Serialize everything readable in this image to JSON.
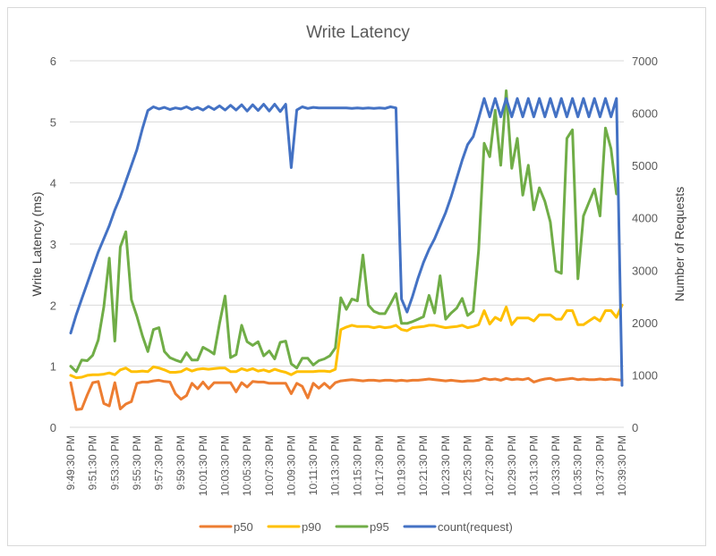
{
  "chart_data": {
    "type": "line",
    "title": "Write Latency",
    "ylabel": "Write Latency (ms)",
    "y2label": "Number of Requests",
    "ylim": [
      0,
      6
    ],
    "y2lim": [
      0,
      7000
    ],
    "yticks": [
      "0",
      "1",
      "2",
      "3",
      "4",
      "5",
      "6"
    ],
    "y2ticks": [
      "0",
      "1000",
      "2000",
      "3000",
      "4000",
      "5000",
      "6000",
      "7000"
    ],
    "grid": true,
    "legend": "bottom",
    "x_tick_labels": [
      "9:49:30 PM",
      "9:51:30 PM",
      "9:53:30 PM",
      "9:55:30 PM",
      "9:57:30 PM",
      "9:59:30 PM",
      "10:01:30 PM",
      "10:03:30 PM",
      "10:05:30 PM",
      "10:07:30 PM",
      "10:09:30 PM",
      "10:11:30 PM",
      "10:13:30 PM",
      "10:15:30 PM",
      "10:17:30 PM",
      "10:19:30 PM",
      "10:21:30 PM",
      "10:23:30 PM",
      "10:25:30 PM",
      "10:27:30 PM",
      "10:29:30 PM",
      "10:31:30 PM",
      "10:33:30 PM",
      "10:35:30 PM",
      "10:37:30 PM",
      "10:39:30 PM"
    ],
    "series": [
      {
        "name": "p50",
        "axis": "left",
        "color": "#ED7D31",
        "values": [
          0.73,
          0.29,
          0.3,
          0.53,
          0.73,
          0.75,
          0.39,
          0.35,
          0.73,
          0.3,
          0.38,
          0.42,
          0.72,
          0.74,
          0.74,
          0.76,
          0.77,
          0.75,
          0.74,
          0.55,
          0.46,
          0.52,
          0.72,
          0.63,
          0.74,
          0.63,
          0.73,
          0.73,
          0.73,
          0.73,
          0.58,
          0.73,
          0.66,
          0.75,
          0.74,
          0.74,
          0.72,
          0.72,
          0.72,
          0.72,
          0.55,
          0.72,
          0.67,
          0.48,
          0.72,
          0.64,
          0.72,
          0.64,
          0.73,
          0.76,
          0.77,
          0.78,
          0.77,
          0.76,
          0.77,
          0.77,
          0.76,
          0.77,
          0.77,
          0.76,
          0.77,
          0.76,
          0.77,
          0.77,
          0.78,
          0.79,
          0.78,
          0.77,
          0.76,
          0.77,
          0.76,
          0.75,
          0.76,
          0.76,
          0.77,
          0.8,
          0.78,
          0.79,
          0.77,
          0.8,
          0.78,
          0.79,
          0.78,
          0.8,
          0.74,
          0.77,
          0.79,
          0.8,
          0.77,
          0.78,
          0.79,
          0.8,
          0.78,
          0.79,
          0.78,
          0.78,
          0.79,
          0.78,
          0.79,
          0.78,
          0.77
        ]
      },
      {
        "name": "p90",
        "axis": "left",
        "color": "#FFC000",
        "values": [
          0.85,
          0.81,
          0.82,
          0.85,
          0.86,
          0.86,
          0.87,
          0.89,
          0.86,
          0.94,
          0.97,
          0.91,
          0.91,
          0.92,
          0.91,
          0.99,
          0.97,
          0.94,
          0.9,
          0.9,
          0.91,
          0.96,
          0.92,
          0.95,
          0.96,
          0.95,
          0.96,
          0.97,
          0.97,
          0.91,
          0.91,
          0.96,
          0.93,
          0.96,
          0.92,
          0.94,
          0.91,
          0.95,
          0.92,
          0.9,
          0.86,
          0.91,
          0.91,
          0.91,
          0.91,
          0.92,
          0.92,
          0.91,
          0.95,
          1.6,
          1.64,
          1.67,
          1.65,
          1.65,
          1.65,
          1.63,
          1.65,
          1.63,
          1.64,
          1.67,
          1.6,
          1.58,
          1.63,
          1.64,
          1.65,
          1.67,
          1.67,
          1.65,
          1.63,
          1.64,
          1.65,
          1.67,
          1.63,
          1.65,
          1.68,
          1.91,
          1.69,
          1.8,
          1.75,
          1.97,
          1.68,
          1.79,
          1.79,
          1.79,
          1.74,
          1.84,
          1.84,
          1.84,
          1.77,
          1.77,
          1.91,
          1.91,
          1.68,
          1.68,
          1.74,
          1.8,
          1.74,
          1.91,
          1.91,
          1.8,
          2.0
        ]
      },
      {
        "name": "p95",
        "axis": "left",
        "color": "#70AD47",
        "values": [
          1.0,
          0.91,
          1.1,
          1.09,
          1.18,
          1.43,
          1.97,
          2.77,
          1.41,
          2.95,
          3.2,
          2.09,
          1.82,
          1.5,
          1.24,
          1.6,
          1.63,
          1.24,
          1.14,
          1.1,
          1.07,
          1.22,
          1.1,
          1.1,
          1.31,
          1.26,
          1.2,
          1.7,
          2.15,
          1.14,
          1.19,
          1.67,
          1.4,
          1.34,
          1.4,
          1.17,
          1.25,
          1.12,
          1.39,
          1.41,
          1.04,
          0.97,
          1.13,
          1.13,
          1.02,
          1.09,
          1.12,
          1.17,
          1.3,
          2.12,
          1.93,
          2.1,
          2.07,
          2.82,
          2.0,
          1.9,
          1.86,
          1.86,
          2.02,
          2.19,
          1.7,
          1.7,
          1.73,
          1.77,
          1.81,
          2.16,
          1.87,
          2.48,
          1.77,
          1.87,
          1.95,
          2.11,
          1.83,
          1.9,
          2.9,
          4.65,
          4.43,
          5.19,
          4.29,
          5.51,
          4.24,
          4.73,
          3.8,
          4.29,
          3.56,
          3.92,
          3.7,
          3.36,
          2.56,
          2.52,
          4.73,
          4.87,
          2.43,
          3.46,
          3.68,
          3.9,
          3.46,
          4.9,
          4.56,
          3.82,
          null
        ]
      },
      {
        "name": "count(request)",
        "axis": "right",
        "color": "#4472C4",
        "values": [
          1800,
          2150,
          2450,
          2750,
          3050,
          3350,
          3600,
          3850,
          4150,
          4400,
          4700,
          5000,
          5300,
          5700,
          6050,
          6120,
          6080,
          6110,
          6070,
          6100,
          6080,
          6120,
          6070,
          6110,
          6060,
          6130,
          6070,
          6140,
          6060,
          6150,
          6060,
          6160,
          6040,
          6160,
          6050,
          6170,
          6040,
          6170,
          6030,
          6170,
          4960,
          6060,
          6120,
          6090,
          6110,
          6100,
          6100,
          6100,
          6100,
          6100,
          6100,
          6090,
          6100,
          6090,
          6100,
          6090,
          6100,
          6090,
          6120,
          6100,
          2450,
          2200,
          2500,
          2850,
          3150,
          3400,
          3600,
          3850,
          4100,
          4400,
          4750,
          5100,
          5400,
          5550,
          5900,
          6280,
          5930,
          6280,
          5930,
          6280,
          5930,
          6280,
          5930,
          6280,
          5930,
          6280,
          5930,
          6280,
          5930,
          6280,
          5930,
          6280,
          5930,
          6280,
          5930,
          6280,
          5930,
          6280,
          5930,
          6280,
          800
        ]
      }
    ]
  }
}
